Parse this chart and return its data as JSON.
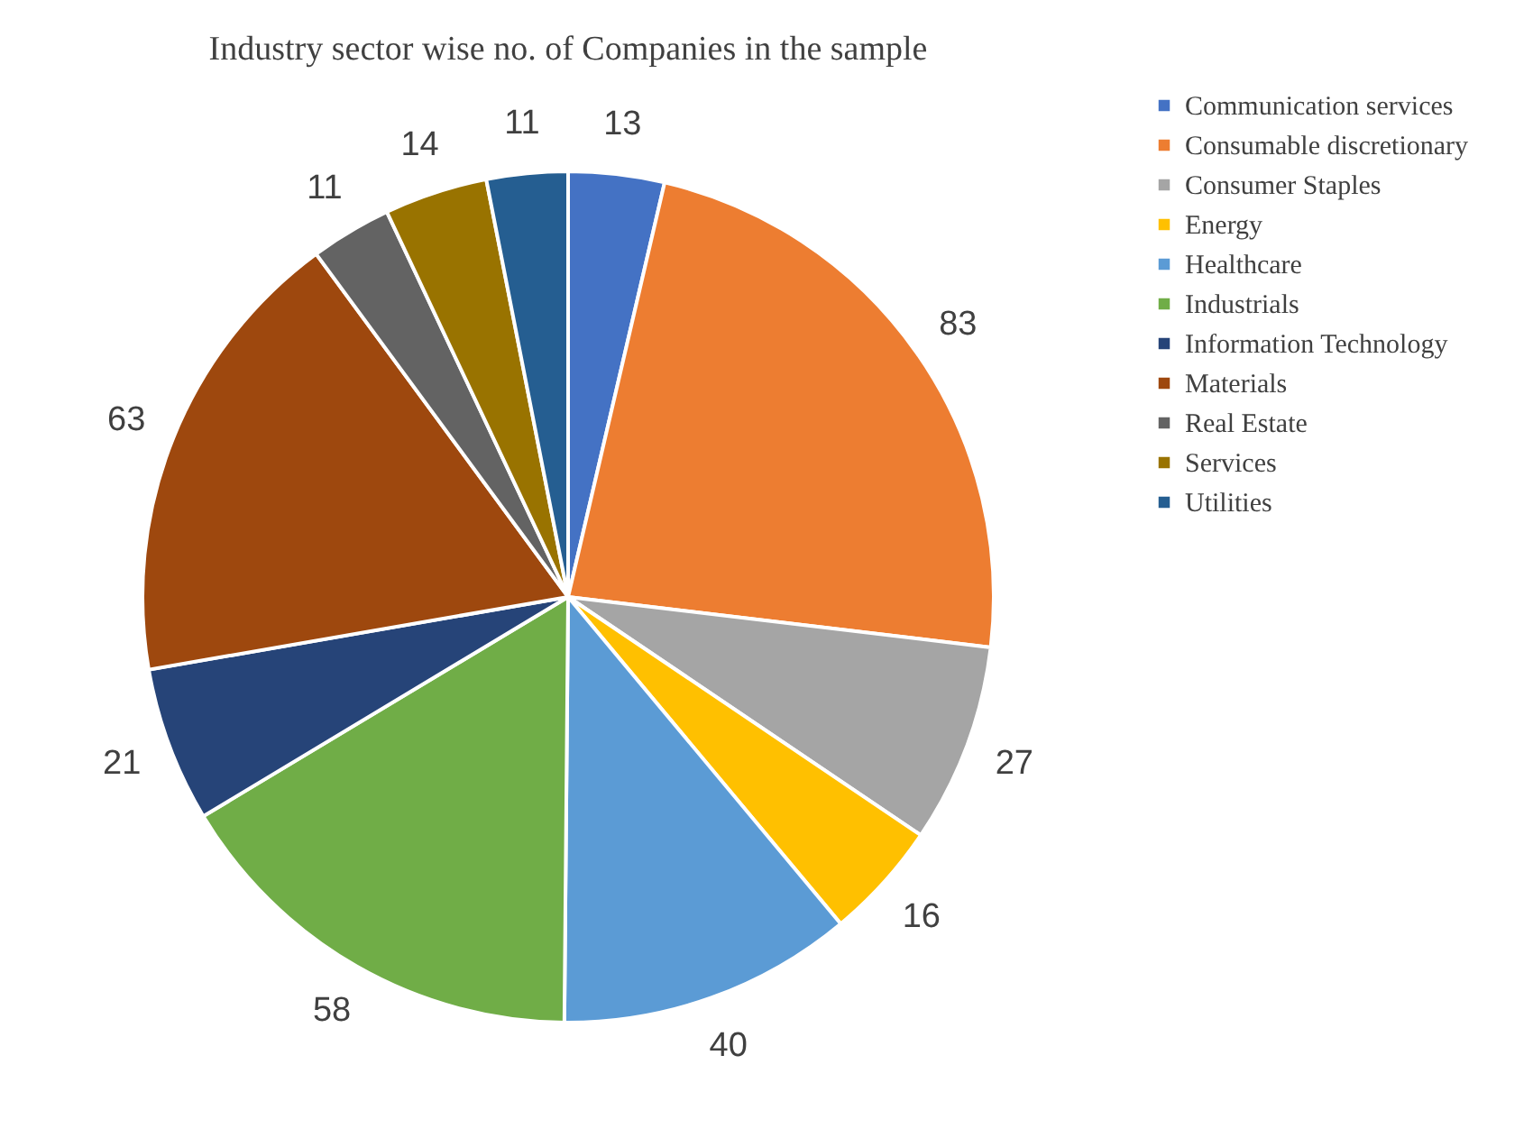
{
  "chart_data": {
    "type": "pie",
    "title": "Industry sector wise no. of  Companies in the sample",
    "categories": [
      "Communication services",
      "Consumable discretionary",
      "Consumer Staples",
      "Energy",
      "Healthcare",
      "Industrials",
      "Information Technology",
      "Materials",
      "Real Estate",
      "Services",
      "Utilities"
    ],
    "values": [
      13,
      83,
      27,
      16,
      40,
      58,
      21,
      63,
      11,
      14,
      11
    ],
    "colors": [
      "#4472c4",
      "#ed7d31",
      "#a5a5a5",
      "#ffc000",
      "#5b9bd5",
      "#70ad47",
      "#264478",
      "#9e480e",
      "#636363",
      "#997300",
      "#255e91"
    ],
    "data_labels": true,
    "legend": "right"
  }
}
